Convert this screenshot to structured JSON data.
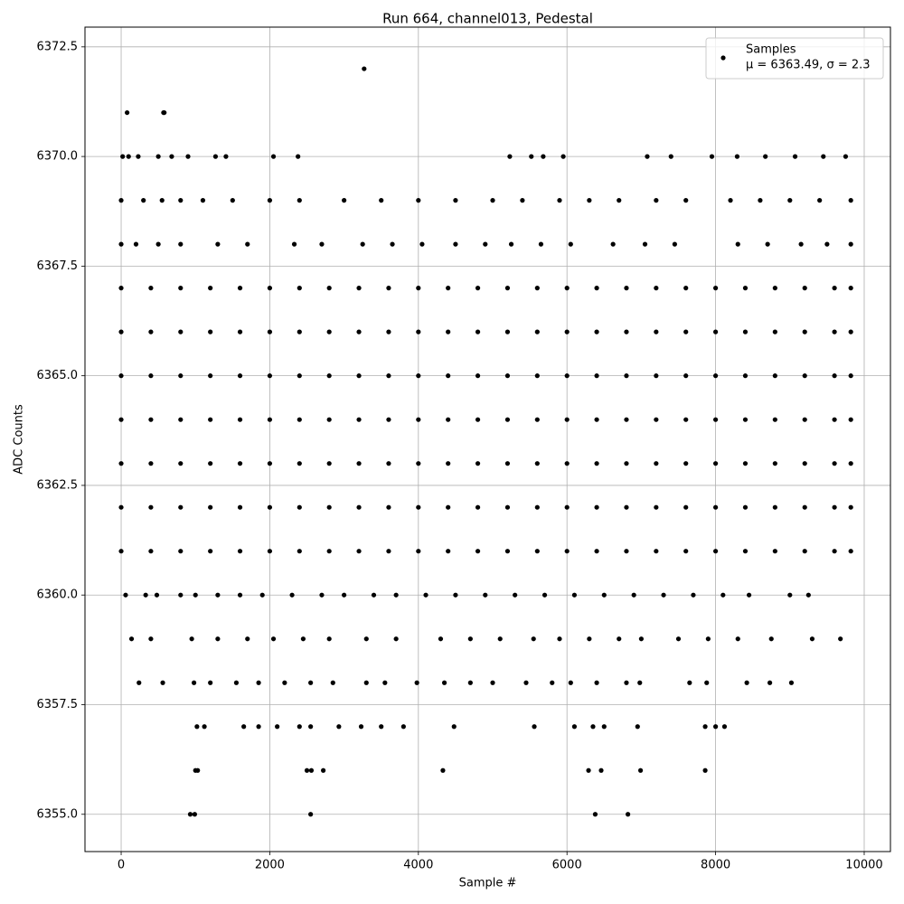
{
  "chart_data": {
    "type": "scatter",
    "title": "Run 664, channel013, Pedestal",
    "x_label": "Sample #",
    "y_label": "ADC Counts",
    "xlim": [
      -487,
      10353
    ],
    "ylim": [
      6354.15,
      6372.95
    ],
    "xticks": [
      0,
      2000,
      4000,
      6000,
      8000,
      10000
    ],
    "yticks": [
      {
        "value": 6355,
        "label": "6355.0"
      },
      {
        "value": 6357.5,
        "label": "6357.5"
      },
      {
        "value": 6360,
        "label": "6360.0"
      },
      {
        "value": 6362.5,
        "label": "6362.5"
      },
      {
        "value": 6365,
        "label": "6365.0"
      },
      {
        "value": 6367.5,
        "label": "6367.5"
      },
      {
        "value": 6370,
        "label": "6370.0"
      },
      {
        "value": 6372.5,
        "label": "6372.5"
      }
    ],
    "grid": true,
    "legend": "upper right",
    "legend_note": "μ = 6363.49, σ = 2.3",
    "series": [
      {
        "name": "Samples",
        "color": "#000000",
        "x": [
          3270,
          80,
          570,
          580,
          20,
          100,
          230,
          500,
          680,
          900,
          1270,
          1410,
          2050,
          2380,
          5230,
          5520,
          5680,
          5950,
          7080,
          7400,
          7950,
          8290,
          8670,
          9070,
          9450,
          9750,
          0,
          300,
          550,
          800,
          1100,
          1500,
          2000,
          2400,
          3000,
          3500,
          4000,
          4500,
          5000,
          5400,
          5900,
          6300,
          6700,
          7200,
          7600,
          8200,
          8600,
          9000,
          9400,
          9820,
          0,
          200,
          500,
          800,
          1300,
          1700,
          2330,
          2700,
          3250,
          3650,
          4050,
          4500,
          4900,
          5250,
          5650,
          6050,
          6620,
          7050,
          7450,
          8300,
          8700,
          9150,
          9500,
          9820,
          0,
          400,
          800,
          1200,
          1600,
          2000,
          2400,
          2800,
          3200,
          3600,
          4000,
          4400,
          4800,
          5200,
          5600,
          6000,
          6400,
          6800,
          7200,
          7600,
          8000,
          8400,
          8800,
          9200,
          9600,
          9820,
          0,
          400,
          800,
          1200,
          1600,
          2000,
          2400,
          2800,
          3200,
          3600,
          4000,
          4400,
          4800,
          5200,
          5600,
          6000,
          6400,
          6800,
          7200,
          7600,
          8000,
          8400,
          8800,
          9200,
          9600,
          9820,
          0,
          400,
          800,
          1200,
          1600,
          2000,
          2400,
          2800,
          3200,
          3600,
          4000,
          4400,
          4800,
          5200,
          5600,
          6000,
          6400,
          6800,
          7200,
          7600,
          8000,
          8400,
          8800,
          9200,
          9600,
          9820,
          0,
          400,
          800,
          1200,
          1600,
          2000,
          2400,
          2800,
          3200,
          3600,
          4000,
          4400,
          4800,
          5200,
          5600,
          6000,
          6400,
          6800,
          7200,
          7600,
          8000,
          8400,
          8800,
          9200,
          9600,
          9820,
          0,
          400,
          800,
          1200,
          1600,
          2000,
          2400,
          2800,
          3200,
          3600,
          4000,
          4400,
          4800,
          5200,
          5600,
          6000,
          6400,
          6800,
          7200,
          7600,
          8000,
          8400,
          8800,
          9200,
          9600,
          9820,
          0,
          400,
          800,
          1200,
          1600,
          2000,
          2400,
          2800,
          3200,
          3600,
          4000,
          4400,
          4800,
          5200,
          5600,
          6000,
          6400,
          6800,
          7200,
          7600,
          8000,
          8400,
          8800,
          9200,
          9600,
          9820,
          0,
          400,
          800,
          1200,
          1600,
          2000,
          2400,
          2800,
          3200,
          3600,
          4000,
          4400,
          4800,
          5200,
          5600,
          6000,
          6400,
          6800,
          7200,
          7600,
          8000,
          8400,
          8800,
          9200,
          9600,
          9820,
          60,
          330,
          480,
          800,
          1000,
          1300,
          1600,
          1900,
          2300,
          2700,
          3000,
          3400,
          3700,
          4100,
          4500,
          4900,
          5300,
          5700,
          6100,
          6500,
          6900,
          7300,
          7700,
          8100,
          8450,
          9000,
          9250,
          140,
          400,
          950,
          1300,
          1700,
          2050,
          2450,
          2800,
          3300,
          3700,
          4300,
          4700,
          5100,
          5550,
          5900,
          6300,
          6700,
          7000,
          7500,
          7900,
          8300,
          8750,
          9300,
          9680,
          240,
          560,
          980,
          1200,
          1550,
          1850,
          2200,
          2550,
          2850,
          3300,
          3550,
          3980,
          4350,
          4700,
          5000,
          5450,
          5800,
          6050,
          6400,
          6800,
          6980,
          7650,
          7880,
          8420,
          8730,
          9020,
          1020,
          1120,
          1650,
          1850,
          2100,
          2400,
          2550,
          2930,
          3230,
          3500,
          3800,
          4480,
          5560,
          6100,
          6350,
          6500,
          6950,
          7860,
          8000,
          8120,
          1000,
          1030,
          2500,
          2560,
          2720,
          4330,
          6290,
          6460,
          6990,
          7860,
          930,
          990,
          2550,
          6380,
          6820
        ],
        "y": [
          6372,
          6371,
          6371,
          6371,
          6370,
          6370,
          6370,
          6370,
          6370,
          6370,
          6370,
          6370,
          6370,
          6370,
          6370,
          6370,
          6370,
          6370,
          6370,
          6370,
          6370,
          6370,
          6370,
          6370,
          6370,
          6370,
          6369,
          6369,
          6369,
          6369,
          6369,
          6369,
          6369,
          6369,
          6369,
          6369,
          6369,
          6369,
          6369,
          6369,
          6369,
          6369,
          6369,
          6369,
          6369,
          6369,
          6369,
          6369,
          6369,
          6369,
          6368,
          6368,
          6368,
          6368,
          6368,
          6368,
          6368,
          6368,
          6368,
          6368,
          6368,
          6368,
          6368,
          6368,
          6368,
          6368,
          6368,
          6368,
          6368,
          6368,
          6368,
          6368,
          6368,
          6368,
          6367,
          6367,
          6367,
          6367,
          6367,
          6367,
          6367,
          6367,
          6367,
          6367,
          6367,
          6367,
          6367,
          6367,
          6367,
          6367,
          6367,
          6367,
          6367,
          6367,
          6367,
          6367,
          6367,
          6367,
          6367,
          6367,
          6366,
          6366,
          6366,
          6366,
          6366,
          6366,
          6366,
          6366,
          6366,
          6366,
          6366,
          6366,
          6366,
          6366,
          6366,
          6366,
          6366,
          6366,
          6366,
          6366,
          6366,
          6366,
          6366,
          6366,
          6366,
          6366,
          6365,
          6365,
          6365,
          6365,
          6365,
          6365,
          6365,
          6365,
          6365,
          6365,
          6365,
          6365,
          6365,
          6365,
          6365,
          6365,
          6365,
          6365,
          6365,
          6365,
          6365,
          6365,
          6365,
          6365,
          6365,
          6365,
          6364,
          6364,
          6364,
          6364,
          6364,
          6364,
          6364,
          6364,
          6364,
          6364,
          6364,
          6364,
          6364,
          6364,
          6364,
          6364,
          6364,
          6364,
          6364,
          6364,
          6364,
          6364,
          6364,
          6364,
          6364,
          6364,
          6363,
          6363,
          6363,
          6363,
          6363,
          6363,
          6363,
          6363,
          6363,
          6363,
          6363,
          6363,
          6363,
          6363,
          6363,
          6363,
          6363,
          6363,
          6363,
          6363,
          6363,
          6363,
          6363,
          6363,
          6363,
          6363,
          6362,
          6362,
          6362,
          6362,
          6362,
          6362,
          6362,
          6362,
          6362,
          6362,
          6362,
          6362,
          6362,
          6362,
          6362,
          6362,
          6362,
          6362,
          6362,
          6362,
          6362,
          6362,
          6362,
          6362,
          6362,
          6362,
          6361,
          6361,
          6361,
          6361,
          6361,
          6361,
          6361,
          6361,
          6361,
          6361,
          6361,
          6361,
          6361,
          6361,
          6361,
          6361,
          6361,
          6361,
          6361,
          6361,
          6361,
          6361,
          6361,
          6361,
          6361,
          6361,
          6360,
          6360,
          6360,
          6360,
          6360,
          6360,
          6360,
          6360,
          6360,
          6360,
          6360,
          6360,
          6360,
          6360,
          6360,
          6360,
          6360,
          6360,
          6360,
          6360,
          6360,
          6360,
          6360,
          6360,
          6360,
          6360,
          6360,
          6359,
          6359,
          6359,
          6359,
          6359,
          6359,
          6359,
          6359,
          6359,
          6359,
          6359,
          6359,
          6359,
          6359,
          6359,
          6359,
          6359,
          6359,
          6359,
          6359,
          6359,
          6359,
          6359,
          6359,
          6358,
          6358,
          6358,
          6358,
          6358,
          6358,
          6358,
          6358,
          6358,
          6358,
          6358,
          6358,
          6358,
          6358,
          6358,
          6358,
          6358,
          6358,
          6358,
          6358,
          6358,
          6358,
          6358,
          6358,
          6358,
          6358,
          6357,
          6357,
          6357,
          6357,
          6357,
          6357,
          6357,
          6357,
          6357,
          6357,
          6357,
          6357,
          6357,
          6357,
          6357,
          6357,
          6357,
          6357,
          6357,
          6357,
          6356,
          6356,
          6356,
          6356,
          6356,
          6356,
          6356,
          6356,
          6356,
          6356,
          6355,
          6355,
          6355,
          6355,
          6355
        ]
      }
    ]
  }
}
